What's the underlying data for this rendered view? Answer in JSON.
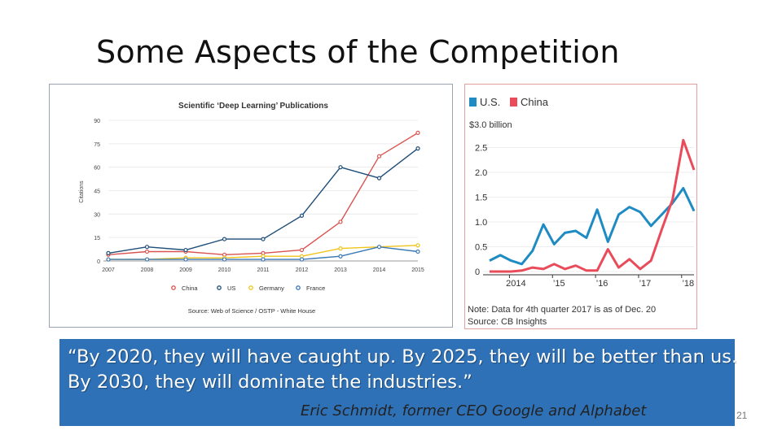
{
  "slide": {
    "title": "Some Aspects of the Competition",
    "quote_line1": "“By 2020, they will have caught up.  By 2025, they will be better than us.",
    "quote_line2": "By 2030, they will dominate the industries.”",
    "attribution": "Eric Schmidt, former CEO Google and Alphabet",
    "page_number": "21"
  },
  "chart_data": [
    {
      "type": "line",
      "title": "Scientific ‘Deep Learning’ Publications",
      "ylabel": "Citations",
      "xlabel": "",
      "x": [
        "2007",
        "2008",
        "2009",
        "2010",
        "2011",
        "2012",
        "2013",
        "2014",
        "2015"
      ],
      "yticks": [
        0,
        15,
        30,
        45,
        60,
        75,
        90
      ],
      "ylim": [
        0,
        90
      ],
      "series": [
        {
          "name": "China",
          "color": "#d9534f",
          "values": [
            4,
            6,
            6,
            4,
            5,
            7,
            25,
            67,
            82
          ]
        },
        {
          "name": "US",
          "color": "#1f4e79",
          "values": [
            5,
            9,
            7,
            14,
            14,
            29,
            60,
            53,
            72
          ]
        },
        {
          "name": "Germany",
          "color": "#f0c419",
          "values": [
            1,
            1,
            2,
            2,
            3,
            3,
            8,
            9,
            10
          ]
        },
        {
          "name": "France",
          "color": "#3a78b5",
          "values": [
            1,
            1,
            1,
            1,
            1,
            1,
            3,
            9,
            6
          ]
        }
      ],
      "source": "Source: Web of Science / OSTP - White House"
    },
    {
      "type": "line",
      "legend": [
        "U.S.",
        "China"
      ],
      "unit_label": "$3.0 billion",
      "yticks": [
        "2.5",
        "2.0",
        "1.5",
        "1.0",
        "0.5",
        "0"
      ],
      "ylim": [
        0,
        3.0
      ],
      "x_labels": [
        "2014",
        "’15",
        "’16",
        "’17",
        "’18"
      ],
      "series": [
        {
          "name": "U.S.",
          "color": "#1e8bc3",
          "values": [
            0.22,
            0.33,
            0.22,
            0.15,
            0.42,
            0.95,
            0.55,
            0.78,
            0.82,
            0.68,
            1.25,
            0.6,
            1.15,
            1.3,
            1.2,
            0.92,
            1.15,
            1.38,
            1.68,
            1.22
          ]
        },
        {
          "name": "China",
          "color": "#e94b5a",
          "values": [
            0.0,
            0.0,
            0.0,
            0.02,
            0.08,
            0.05,
            0.15,
            0.05,
            0.12,
            0.02,
            0.02,
            0.45,
            0.08,
            0.25,
            0.05,
            0.22,
            0.85,
            1.45,
            2.65,
            2.05
          ]
        }
      ],
      "note": "Note: Data for 4th quarter 2017 is as of Dec. 20",
      "source": "Source: CB Insights"
    }
  ]
}
